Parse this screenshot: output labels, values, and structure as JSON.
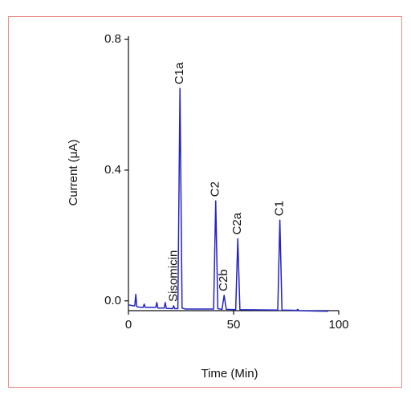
{
  "chart_data": {
    "type": "line",
    "xlabel": "Time (Min)",
    "ylabel": "Current (μA)",
    "x": [
      0,
      2,
      3,
      3.5,
      4,
      6,
      7,
      7.5,
      8,
      12,
      13,
      13.5,
      14,
      16,
      17,
      17.5,
      18,
      21,
      21.5,
      22,
      23.5,
      24.5,
      25.5,
      27,
      40.5,
      41.5,
      42.5,
      44.5,
      45.5,
      46.5,
      51,
      52,
      53,
      71,
      72,
      73,
      80,
      80.5,
      81,
      95
    ],
    "series": [
      {
        "color": "#2323c4",
        "values": [
          -0.012,
          -0.015,
          -0.015,
          0.02,
          -0.018,
          -0.02,
          -0.02,
          -0.01,
          -0.02,
          -0.02,
          -0.02,
          -0.005,
          -0.022,
          -0.022,
          -0.022,
          -0.005,
          -0.023,
          -0.024,
          -0.015,
          -0.024,
          -0.024,
          0.65,
          -0.022,
          -0.025,
          -0.025,
          0.306,
          -0.024,
          -0.026,
          0.017,
          -0.026,
          -0.027,
          0.19,
          -0.027,
          -0.028,
          0.247,
          -0.028,
          -0.029,
          -0.026,
          -0.03,
          -0.032
        ]
      }
    ],
    "annotations": [
      {
        "text": "Sisomicin",
        "x": 21.5
      },
      {
        "text": "C1a",
        "x": 24.5
      },
      {
        "text": "C2",
        "x": 41.5
      },
      {
        "text": "C2b",
        "x": 45.5
      },
      {
        "text": "C2a",
        "x": 52
      },
      {
        "text": "C1",
        "x": 72
      }
    ],
    "xlim": [
      0,
      100
    ],
    "xticks": [
      0,
      50,
      100
    ],
    "ylim": [
      -0.03,
      0.81
    ],
    "yticks": [
      {
        "value": 0,
        "label": "0.0"
      },
      0.4,
      0.8
    ]
  }
}
